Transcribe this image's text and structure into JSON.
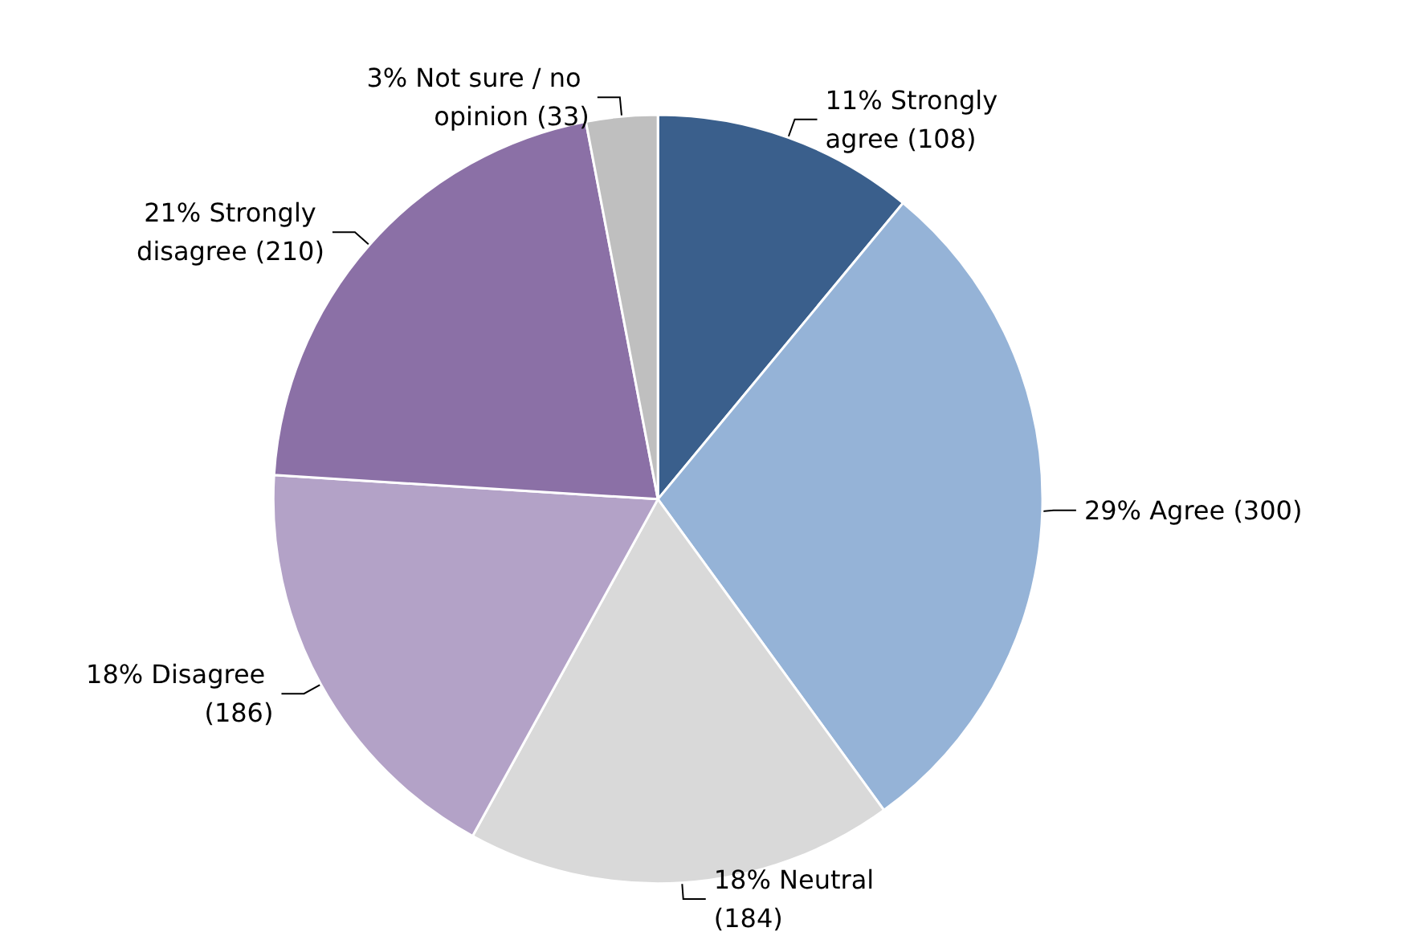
{
  "chart_data": {
    "type": "pie",
    "categories": [
      "Strongly agree (108)",
      "Agree (300)",
      "Neutral (184)",
      "Disagree (186)",
      "Strongly disagree (210)",
      "Not sure / no opinion (33)"
    ],
    "values": [
      11,
      29,
      18,
      18,
      21,
      3
    ],
    "value_labels": [
      "11%",
      "29%",
      "18%",
      "18%",
      "21%",
      "3%"
    ],
    "colors": [
      "#3a5f8c",
      "#95b3d7",
      "#d9d9d9",
      "#b3a2c7",
      "#8b70a6",
      "#bfbfbf"
    ],
    "legend": false
  }
}
